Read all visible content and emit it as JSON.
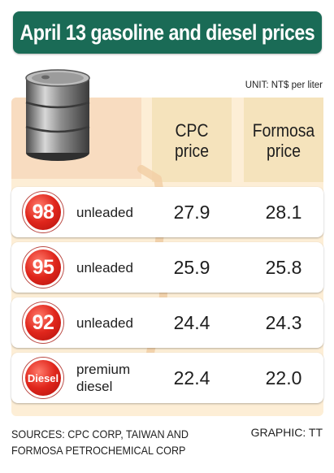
{
  "title": "April 13 gasoline and diesel prices",
  "unit": "UNIT: NT$ per liter",
  "headers": {
    "cpc": "CPC price",
    "formosa": "Formosa price"
  },
  "rows": [
    {
      "badge": "98",
      "label": "unleaded",
      "cpc": "27.9",
      "formosa": "28.1"
    },
    {
      "badge": "95",
      "label": "unleaded",
      "cpc": "25.9",
      "formosa": "25.8"
    },
    {
      "badge": "92",
      "label": "unleaded",
      "cpc": "24.4",
      "formosa": "24.3"
    },
    {
      "badge": "Diesel",
      "label": "premium diesel",
      "cpc": "22.4",
      "formosa": "22.0"
    }
  ],
  "sources": "SOURCES: CPC CORP, TAIWAN AND FORMOSA PETROCHEMICAL CORP",
  "credit": "GRAPHIC: TT",
  "icons": {
    "barrel": "oil-barrel-icon",
    "nozzle": "fuel-nozzle-icon"
  },
  "colors": {
    "title_bg": "#1a6b56",
    "panel_bg": "#fdeed6",
    "badge_red": "#e0261c"
  }
}
